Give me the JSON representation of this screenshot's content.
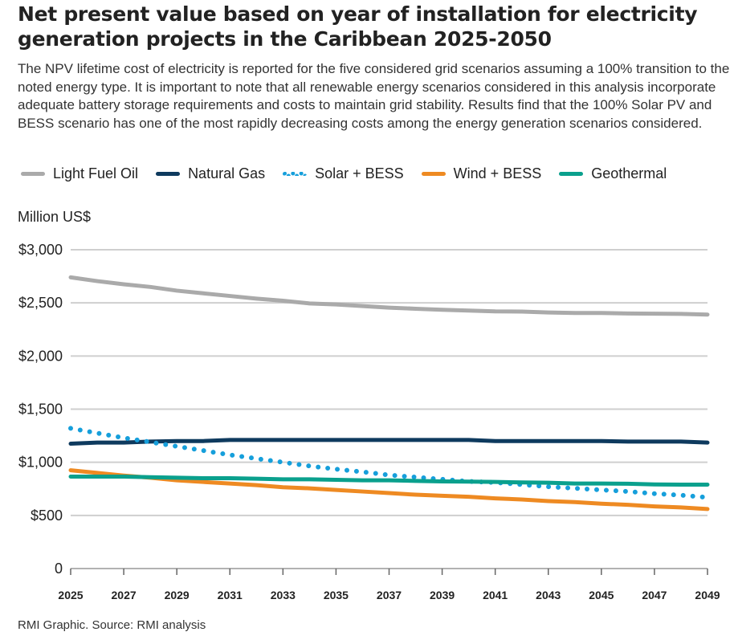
{
  "title": "Net present value based on year of installation for electricity generation projects in the Caribbean 2025-2050",
  "subtitle": "The NPV lifetime cost of electricity is reported for the five considered grid scenarios assuming a 100% transition to the noted energy type. It is important to note that all renewable energy scenarios considered in this analysis incorporate adequate battery storage requirements and costs to maintain grid stability. Results find that the 100% Solar PV and BESS scenario has one of the most rapidly decreasing costs among the energy generation scenarios considered.",
  "footer": "RMI Graphic. Source: RMI analysis",
  "chart_data": {
    "type": "line",
    "title": "Net present value based on year of installation for electricity generation projects in the Caribbean 2025-2050",
    "ylabel": "Million US$",
    "xlabel": "",
    "ylim": [
      0,
      3000
    ],
    "yticks": [
      0,
      500,
      1000,
      1500,
      2000,
      2500,
      3000
    ],
    "ytick_labels": [
      "0",
      "$500",
      "$1,000",
      "$1,500",
      "$2,000",
      "$2,500",
      "$3,000"
    ],
    "xticks": [
      2025,
      2027,
      2029,
      2031,
      2033,
      2035,
      2037,
      2039,
      2041,
      2043,
      2045,
      2047,
      2049
    ],
    "grid": true,
    "legend": "top",
    "x": [
      2025,
      2026,
      2027,
      2028,
      2029,
      2030,
      2031,
      2032,
      2033,
      2034,
      2035,
      2036,
      2037,
      2038,
      2039,
      2040,
      2041,
      2042,
      2043,
      2044,
      2045,
      2046,
      2047,
      2048,
      2049
    ],
    "series": [
      {
        "name": "Light Fuel Oil",
        "color": "#aaaaaa",
        "style": "solid",
        "values": [
          2740,
          2705,
          2675,
          2650,
          2615,
          2590,
          2565,
          2540,
          2520,
          2495,
          2485,
          2470,
          2455,
          2445,
          2435,
          2428,
          2420,
          2418,
          2410,
          2405,
          2405,
          2400,
          2398,
          2396,
          2390
        ]
      },
      {
        "name": "Natural Gas",
        "color": "#0e3a5e",
        "style": "solid",
        "values": [
          1175,
          1185,
          1185,
          1195,
          1200,
          1200,
          1210,
          1210,
          1210,
          1210,
          1210,
          1210,
          1210,
          1210,
          1210,
          1210,
          1200,
          1200,
          1200,
          1200,
          1200,
          1195,
          1195,
          1195,
          1185
        ]
      },
      {
        "name": "Solar + BESS",
        "color": "#169fdb",
        "style": "dotted",
        "values": [
          1320,
          1275,
          1230,
          1190,
          1150,
          1110,
          1070,
          1035,
          1000,
          965,
          935,
          910,
          880,
          860,
          840,
          820,
          810,
          790,
          770,
          755,
          740,
          725,
          705,
          690,
          670
        ]
      },
      {
        "name": "Wind + BESS",
        "color": "#ee8a22",
        "style": "solid",
        "values": [
          925,
          900,
          875,
          855,
          830,
          815,
          800,
          785,
          765,
          755,
          740,
          725,
          710,
          695,
          685,
          675,
          660,
          650,
          635,
          625,
          610,
          600,
          585,
          575,
          560
        ]
      },
      {
        "name": "Geothermal",
        "color": "#0aa08d",
        "style": "solid",
        "values": [
          865,
          865,
          865,
          860,
          855,
          850,
          850,
          845,
          840,
          840,
          835,
          830,
          830,
          825,
          820,
          818,
          815,
          810,
          808,
          800,
          800,
          798,
          792,
          790,
          790
        ]
      }
    ]
  }
}
